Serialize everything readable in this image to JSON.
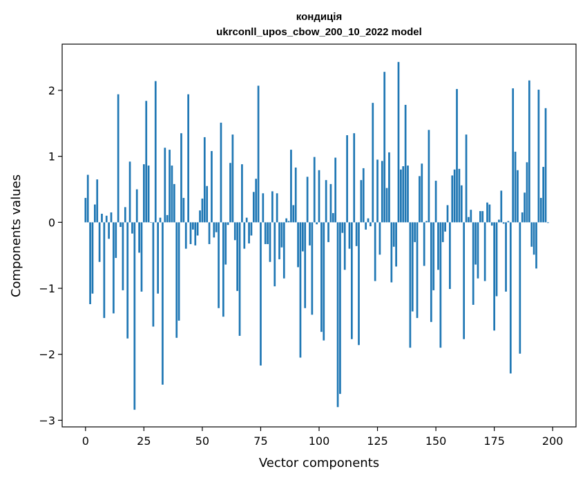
{
  "chart_data": {
    "type": "bar",
    "title": "кондиція",
    "subtitle": "ukrconll_upos_cbow_200_10_2022 model",
    "xlabel": "Vector components",
    "ylabel": "Components values",
    "xlim": [
      -10,
      210
    ],
    "ylim": [
      -3.1,
      2.7
    ],
    "xticks": [
      0,
      25,
      50,
      75,
      100,
      125,
      150,
      175,
      200
    ],
    "yticks": [
      -3,
      -2,
      -1,
      0,
      1,
      2
    ],
    "ytick_labels": [
      "−3",
      "−2",
      "−1",
      "0",
      "1",
      "2"
    ],
    "bar_color": "#1f77b4",
    "grid": false,
    "values": [
      0.37,
      0.72,
      -1.24,
      -1.08,
      0.27,
      0.65,
      -0.6,
      0.13,
      -1.45,
      0.1,
      -0.25,
      0.15,
      -1.38,
      -0.54,
      1.94,
      -0.07,
      -1.03,
      0.23,
      -1.76,
      0.92,
      -0.17,
      -2.84,
      0.5,
      -0.46,
      -1.05,
      0.88,
      1.84,
      0.86,
      0.0,
      -1.58,
      2.14,
      -1.08,
      0.07,
      -2.46,
      1.13,
      0.11,
      1.1,
      0.86,
      0.58,
      -1.75,
      -1.49,
      1.35,
      0.37,
      -0.4,
      1.94,
      -0.33,
      -0.11,
      -0.35,
      -0.2,
      0.18,
      0.36,
      1.29,
      0.55,
      -0.33,
      1.08,
      -0.23,
      -0.15,
      -1.3,
      1.51,
      -1.43,
      -0.64,
      -0.04,
      0.9,
      1.33,
      -0.27,
      -1.04,
      -1.72,
      0.88,
      -0.4,
      0.07,
      -0.32,
      -0.2,
      0.46,
      0.66,
      2.07,
      -2.17,
      0.44,
      -0.33,
      -0.33,
      -0.6,
      0.47,
      -0.97,
      0.44,
      -0.56,
      -0.38,
      -0.85,
      0.06,
      0.02,
      1.1,
      0.26,
      0.83,
      -0.68,
      -2.05,
      -0.44,
      -1.3,
      0.69,
      -0.35,
      -1.4,
      0.99,
      -0.03,
      0.79,
      -1.66,
      -1.79,
      0.64,
      -0.3,
      0.58,
      0.14,
      0.98,
      -2.8,
      -2.6,
      -0.16,
      -0.72,
      1.32,
      -0.4,
      -1.77,
      1.35,
      -0.36,
      -1.86,
      0.64,
      0.82,
      -0.11,
      0.06,
      -0.06,
      1.81,
      -0.89,
      0.95,
      -0.49,
      0.93,
      2.28,
      0.52,
      1.06,
      -0.91,
      -0.37,
      -0.67,
      2.43,
      0.8,
      0.85,
      1.78,
      0.86,
      -1.9,
      -1.35,
      -0.3,
      -1.45,
      0.7,
      0.89,
      -0.66,
      0.02,
      1.4,
      -1.51,
      -1.03,
      0.63,
      -0.72,
      -1.9,
      -0.3,
      -0.14,
      0.26,
      -1.01,
      0.71,
      0.8,
      2.02,
      0.81,
      0.56,
      -1.77,
      1.33,
      0.08,
      0.19,
      -1.25,
      -0.64,
      -0.85,
      0.17,
      0.17,
      -0.89,
      0.3,
      0.27,
      -0.05,
      -1.64,
      -1.12,
      0.04,
      0.48,
      -0.02,
      -1.05,
      0.02,
      -2.29,
      2.03,
      1.07,
      0.79,
      -1.99,
      0.15,
      0.45,
      0.91,
      2.15,
      -0.37,
      -0.49,
      -0.7,
      2.01,
      0.37,
      0.84,
      1.73,
      -0.01
    ]
  }
}
